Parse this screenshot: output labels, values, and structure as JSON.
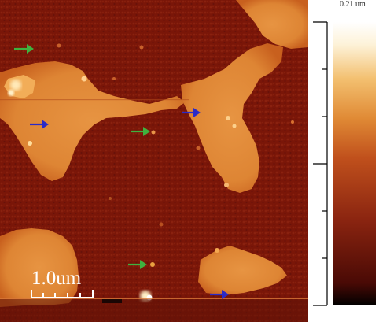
{
  "image": {
    "description_kind": "afm-height-map",
    "scale_bar_label": "1.0um",
    "colorbar_top_label": "0.21 um",
    "colors": {
      "background_domain": "#7a1608",
      "island": "#e08a35",
      "island_edge": "#c8601e",
      "bright_spot": "#fff0c8",
      "arrow_green": "#3fb23f",
      "arrow_blue": "#2a2ac8"
    },
    "colorbar_gradient": [
      "#000000",
      "#4a0a05",
      "#8a2410",
      "#c0501c",
      "#e08a35",
      "#f3c070",
      "#fdf2d8",
      "#ffffff"
    ],
    "arrows": [
      {
        "color": "green",
        "direction": "right"
      },
      {
        "color": "green",
        "direction": "right"
      },
      {
        "color": "green",
        "direction": "right"
      },
      {
        "color": "blue",
        "direction": "right"
      },
      {
        "color": "blue",
        "direction": "right"
      },
      {
        "color": "blue",
        "direction": "right"
      }
    ]
  }
}
